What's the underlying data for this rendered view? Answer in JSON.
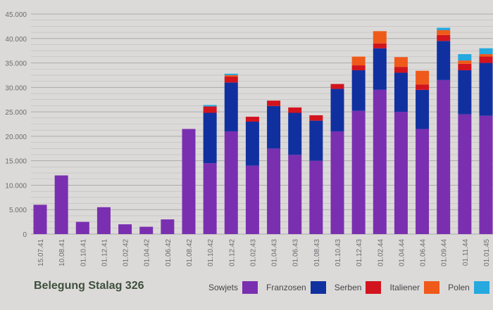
{
  "title": "Belegung Stalag 326",
  "colors": {
    "Sowjets": "#7a2fb0",
    "Franzosen": "#1130a0",
    "Serben": "#d2141e",
    "Italiener": "#ef5a1a",
    "Polen": "#25a9de",
    "grid": "#a4a6a6",
    "axis_text": "#6a6c70"
  },
  "legend": [
    {
      "label": "Sowjets",
      "color_key": "Sowjets"
    },
    {
      "label": "Franzosen",
      "color_key": "Franzosen"
    },
    {
      "label": "Serben",
      "color_key": "Serben"
    },
    {
      "label": "Italiener",
      "color_key": "Italiener"
    },
    {
      "label": "Polen",
      "color_key": "Polen"
    }
  ],
  "chart_data": {
    "type": "bar",
    "stacked": true,
    "title": "Belegung Stalag 326",
    "ylim": [
      0,
      45000
    ],
    "yticks": [
      "0",
      "5.000",
      "10.000",
      "15.000",
      "20.000",
      "25.000",
      "30.000",
      "35.000",
      "40.000",
      "45.000"
    ],
    "grid": true,
    "legend_position": "bottom-right",
    "categories": [
      "15.07.41",
      "10.08.41",
      "01.10.41",
      "01.12.41",
      "01.02.42",
      "01.04.42",
      "01.06.42",
      "01.08.42",
      "01.10.42",
      "01.12.42",
      "01.02.43",
      "01.04.43",
      "01.06.43",
      "01.08.43",
      "01.10.43",
      "01.12.43",
      "01.02.44",
      "01.04.44",
      "01.06.44",
      "01.09.44",
      "01.11.44",
      "01.01.45"
    ],
    "series": [
      {
        "name": "Sowjets",
        "values": [
          6000,
          12000,
          2500,
          5500,
          2000,
          1500,
          3000,
          21500,
          14500,
          21000,
          14000,
          17500,
          16200,
          15000,
          21000,
          25200,
          29500,
          25000,
          21500,
          31500,
          24500,
          24200
        ]
      },
      {
        "name": "Franzosen",
        "values": [
          0,
          0,
          0,
          0,
          0,
          0,
          0,
          0,
          10300,
          10000,
          9000,
          8700,
          8600,
          8200,
          8700,
          8300,
          8500,
          8000,
          8000,
          8000,
          9000,
          10800
        ]
      },
      {
        "name": "Serben",
        "values": [
          0,
          0,
          0,
          0,
          0,
          0,
          0,
          0,
          1300,
          1200,
          1000,
          1100,
          1100,
          1100,
          1000,
          1000,
          1000,
          1200,
          1100,
          1200,
          1300,
          1300
        ]
      },
      {
        "name": "Italiener",
        "values": [
          0,
          0,
          0,
          0,
          0,
          0,
          0,
          0,
          0,
          300,
          0,
          0,
          0,
          0,
          0,
          1800,
          2500,
          2000,
          2800,
          1000,
          700,
          500
        ]
      },
      {
        "name": "Polen",
        "values": [
          0,
          0,
          0,
          0,
          0,
          0,
          0,
          0,
          300,
          300,
          0,
          0,
          0,
          0,
          0,
          0,
          0,
          0,
          0,
          500,
          1300,
          1200
        ]
      }
    ]
  }
}
